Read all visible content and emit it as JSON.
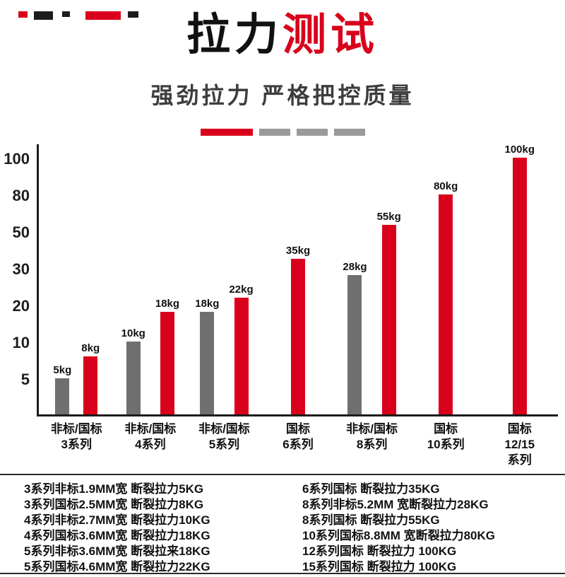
{
  "page": {
    "accent_red": "#d9001b",
    "bar_gray": "#6f6f6f",
    "background": "#ffffff"
  },
  "header": {
    "title_black": "拉力",
    "title_red": "测试",
    "subtitle": "强劲拉力 严格把控质量"
  },
  "chart_data": {
    "type": "bar",
    "title": "拉力测试",
    "unit": "kg",
    "ylim": [
      0,
      100
    ],
    "y_ticks": [
      100,
      80,
      50,
      30,
      20,
      10,
      5
    ],
    "grid": false,
    "legend": "none",
    "colors": {
      "gray": "#6f6f6f",
      "red": "#d9001b"
    },
    "groups": [
      {
        "category_lines": [
          "非标/国标",
          "3系列"
        ],
        "bars": [
          {
            "value": 5,
            "label": "5kg",
            "color": "gray"
          },
          {
            "value": 8,
            "label": "8kg",
            "color": "red"
          }
        ]
      },
      {
        "category_lines": [
          "非标/国标",
          "4系列"
        ],
        "bars": [
          {
            "value": 10,
            "label": "10kg",
            "color": "gray"
          },
          {
            "value": 18,
            "label": "18kg",
            "color": "red"
          }
        ]
      },
      {
        "category_lines": [
          "非标/国标",
          "5系列"
        ],
        "bars": [
          {
            "value": 18,
            "label": "18kg",
            "color": "gray"
          },
          {
            "value": 22,
            "label": "22kg",
            "color": "red"
          }
        ]
      },
      {
        "category_lines": [
          "国标",
          "6系列"
        ],
        "bars": [
          {
            "value": 35,
            "label": "35kg",
            "color": "red"
          }
        ]
      },
      {
        "category_lines": [
          "非标/国标",
          "8系列"
        ],
        "bars": [
          {
            "value": 28,
            "label": "28kg",
            "color": "gray"
          },
          {
            "value": 55,
            "label": "55kg",
            "color": "red"
          }
        ]
      },
      {
        "category_lines": [
          "国标",
          "10系列"
        ],
        "bars": [
          {
            "value": 80,
            "label": "80kg",
            "color": "red"
          }
        ]
      },
      {
        "category_lines": [
          "国标",
          "12/15",
          "系列"
        ],
        "bars": [
          {
            "value": 100,
            "label": "100kg",
            "color": "red"
          }
        ]
      }
    ]
  },
  "specs": {
    "left": [
      "3系列非标1.9MM宽 断裂拉力5KG",
      "3系列国标2.5MM宽 断裂拉力8KG",
      "4系列非标2.7MM宽 断裂拉力10KG",
      "4系列国标3.6MM宽 断裂拉力18KG",
      "5系列非标3.6MM宽 断裂拉来18KG",
      "5系列国标4.6MM宽 断裂拉力22KG"
    ],
    "right": [
      "6系列国标 断裂拉力35KG",
      "8系列非标5.2MM 宽断裂拉力28KG",
      "8系列国标 断裂拉力55KG",
      "10系列国标8.8MM 宽断裂拉力80KG",
      "12系列国标 断裂拉力 100KG",
      "15系列国标 断裂拉力 100KG"
    ]
  }
}
